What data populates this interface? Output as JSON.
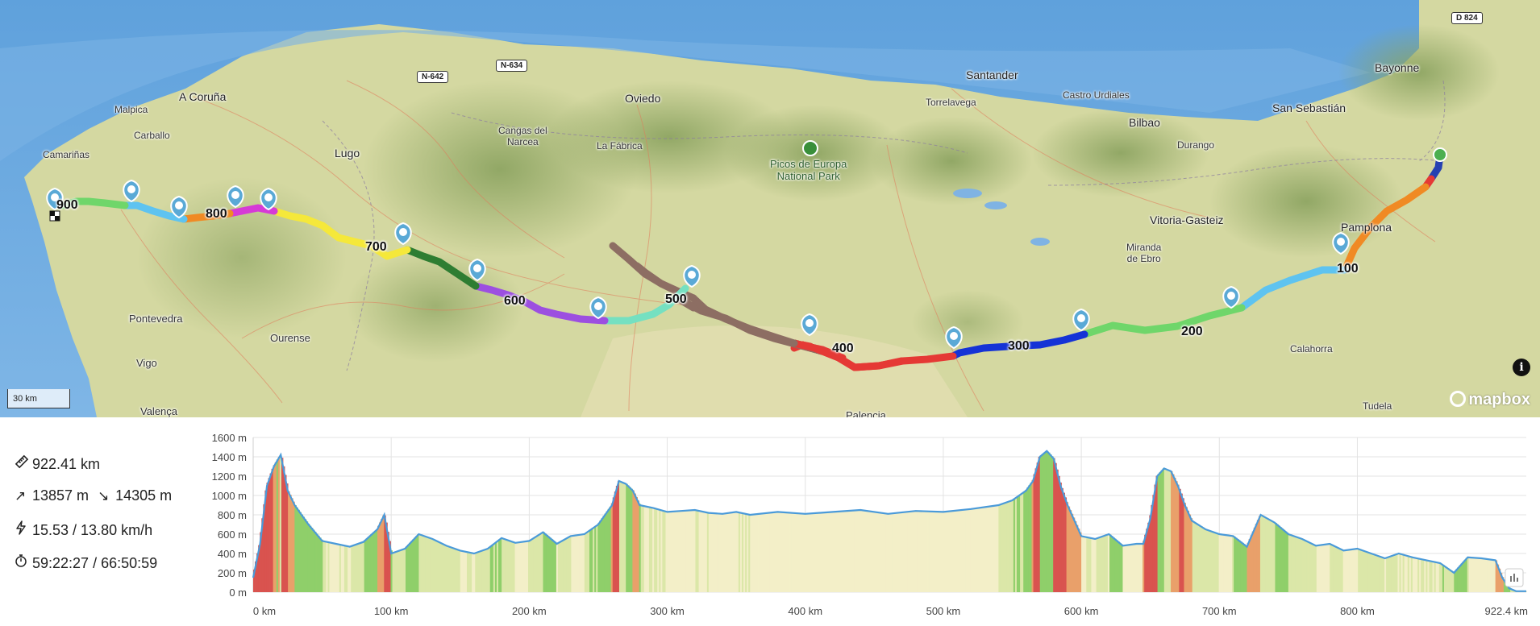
{
  "map": {
    "places": [
      {
        "name": "Bayonne"
      },
      {
        "name": "San Sebastián"
      },
      {
        "name": "Santander"
      },
      {
        "name": "Torrelavega"
      },
      {
        "name": "Castro Urdiales"
      },
      {
        "name": "Bilbao"
      },
      {
        "name": "Durango"
      },
      {
        "name": "Oviedo"
      },
      {
        "name": "Cangas del\nNarcea"
      },
      {
        "name": "La Fábrica"
      },
      {
        "name": "Picos de Europa\nNational Park"
      },
      {
        "name": "Lugo"
      },
      {
        "name": "A Coruña"
      },
      {
        "name": "Malpica"
      },
      {
        "name": "Carballo"
      },
      {
        "name": "Camariñas"
      },
      {
        "name": "Vitoria-Gasteiz"
      },
      {
        "name": "Miranda\nde Ebro"
      },
      {
        "name": "Pamplona"
      },
      {
        "name": "Pontevedra"
      },
      {
        "name": "Ourense"
      },
      {
        "name": "Vigo"
      },
      {
        "name": "Valença"
      },
      {
        "name": "Calahorra"
      },
      {
        "name": "Tudela"
      },
      {
        "name": "Palencia"
      }
    ],
    "roads": [
      "N-642",
      "N-634",
      "D 824"
    ],
    "km_labels": [
      "100",
      "200",
      "300",
      "400",
      "500",
      "600",
      "700",
      "800",
      "900"
    ],
    "scale_label": "30 km",
    "info_label": "i",
    "attribution": "mapbox",
    "colors": {
      "water": "#6aa8df",
      "water_light": "#8fc0ea",
      "land": "#d6d9a3",
      "mountain": "#8fa764"
    }
  },
  "stats": {
    "distance": "922.41 km",
    "climb": "13857 m",
    "descent": "14305 m",
    "speed": "15.53 / 13.80 km/h",
    "time": "59:22:27 / 66:50:59",
    "icons": [
      "ruler-icon",
      "ascent-icon",
      "descent-icon",
      "bolt-icon",
      "stopwatch-icon"
    ]
  },
  "profile": {
    "y_ticks": [
      "1600 m",
      "1400 m",
      "1200 m",
      "1000 m",
      "800 m",
      "600 m",
      "400 m",
      "200 m",
      "0 m"
    ],
    "x_ticks": [
      "0 km",
      "100 km",
      "200 km",
      "300 km",
      "400 km",
      "500 km",
      "600 km",
      "700 km",
      "800 km",
      "922.4 km"
    ]
  },
  "chart_data": {
    "type": "area",
    "title": "",
    "xlabel": "",
    "ylabel": "",
    "xlim": [
      0,
      922.4
    ],
    "ylim": [
      0,
      1600
    ],
    "grid": true,
    "series": [
      {
        "x": [
          0,
          5,
          10,
          15,
          20,
          25,
          30,
          40,
          50,
          60,
          70,
          80,
          90,
          95,
          100,
          110,
          120,
          130,
          140,
          150,
          160,
          170,
          180,
          190,
          200,
          210,
          220,
          230,
          240,
          250,
          260,
          265,
          270,
          275,
          280,
          290,
          300,
          310,
          320,
          330,
          340,
          350,
          360,
          380,
          400,
          420,
          440,
          460,
          480,
          500,
          520,
          540,
          550,
          560,
          565,
          570,
          575,
          580,
          585,
          590,
          600,
          610,
          620,
          630,
          640,
          645,
          650,
          655,
          660,
          665,
          670,
          675,
          680,
          690,
          700,
          710,
          720,
          730,
          740,
          750,
          760,
          770,
          780,
          790,
          800,
          810,
          820,
          830,
          840,
          850,
          860,
          870,
          880,
          890,
          900,
          905,
          910,
          915,
          922.4
        ],
        "y": [
          150,
          500,
          1100,
          1300,
          1420,
          1050,
          900,
          700,
          530,
          500,
          470,
          520,
          650,
          800,
          400,
          450,
          600,
          550,
          480,
          430,
          400,
          450,
          560,
          510,
          530,
          620,
          500,
          580,
          600,
          700,
          900,
          1150,
          1120,
          1050,
          900,
          870,
          830,
          840,
          850,
          820,
          810,
          830,
          800,
          830,
          810,
          830,
          850,
          810,
          840,
          830,
          860,
          900,
          950,
          1050,
          1150,
          1400,
          1460,
          1380,
          1100,
          900,
          580,
          550,
          600,
          480,
          500,
          500,
          760,
          1200,
          1280,
          1250,
          1100,
          900,
          740,
          650,
          600,
          580,
          470,
          800,
          720,
          600,
          550,
          480,
          500,
          430,
          450,
          400,
          350,
          400,
          360,
          330,
          300,
          200,
          360,
          350,
          330,
          150,
          40,
          10,
          10
        ]
      }
    ]
  }
}
